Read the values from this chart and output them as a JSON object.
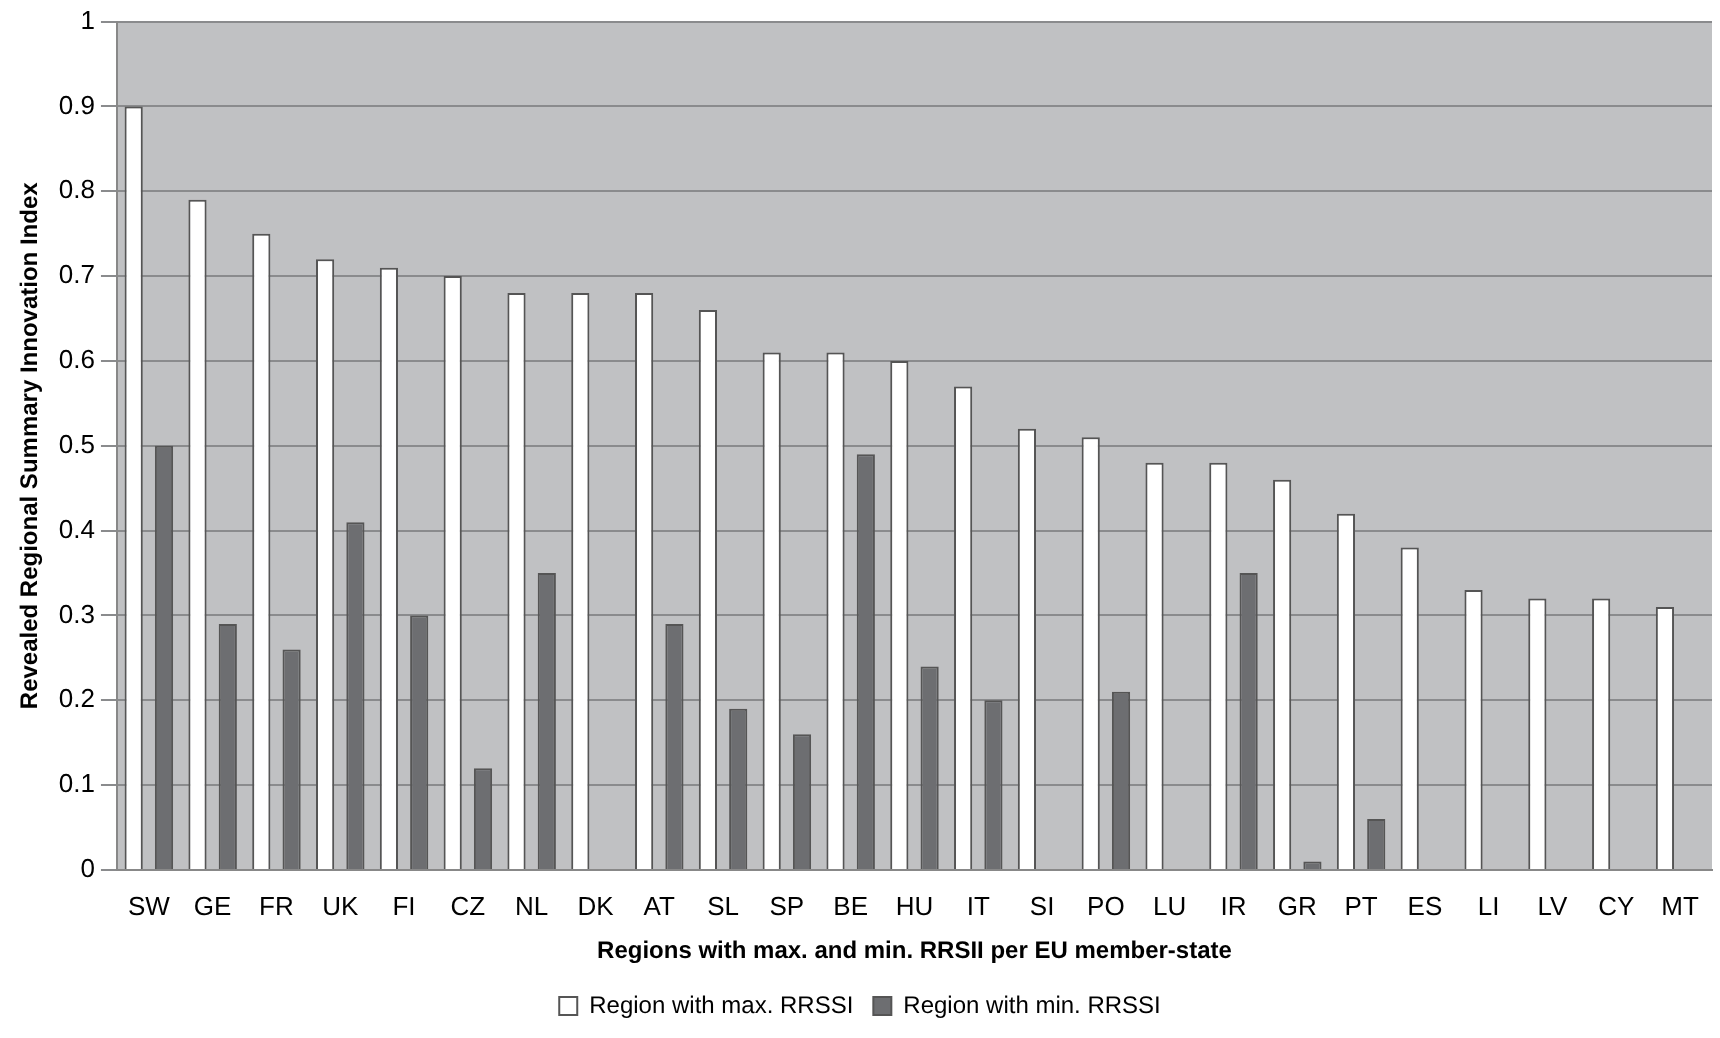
{
  "chart_data": {
    "type": "bar",
    "xlabel": "Regions with max. and min. RRSII per EU member-state",
    "ylabel": "Revealed Regional Summary Innovation Index",
    "categories": [
      "SW",
      "GE",
      "FR",
      "UK",
      "FI",
      "CZ",
      "NL",
      "DK",
      "AT",
      "SL",
      "SP",
      "BE",
      "HU",
      "IT",
      "SI",
      "PO",
      "LU",
      "IR",
      "GR",
      "PT",
      "ES",
      "LI",
      "LV",
      "CY",
      "MT"
    ],
    "series": [
      {
        "name": "Region with max. RRSSI",
        "color": "#ffffff",
        "values": [
          0.9,
          0.79,
          0.75,
          0.72,
          0.71,
          0.7,
          0.68,
          0.68,
          0.68,
          0.66,
          0.61,
          0.61,
          0.6,
          0.57,
          0.52,
          0.51,
          0.48,
          0.48,
          0.46,
          0.42,
          0.38,
          0.33,
          0.32,
          0.32,
          0.31
        ]
      },
      {
        "name": "Region with min. RRSSI",
        "color": "#6d6e71",
        "values": [
          0.5,
          0.29,
          0.26,
          0.41,
          0.3,
          0.12,
          0.35,
          null,
          0.29,
          0.19,
          0.16,
          0.49,
          0.24,
          0.2,
          null,
          0.21,
          null,
          0.35,
          0.01,
          0.06,
          null,
          null,
          null,
          null,
          null
        ]
      }
    ],
    "ylim": [
      0,
      1
    ],
    "yticks": [
      0,
      0.1,
      0.2,
      0.3,
      0.4,
      0.5,
      0.6,
      0.7,
      0.8,
      0.9,
      1
    ],
    "grid": "y",
    "legend": "bottom"
  }
}
